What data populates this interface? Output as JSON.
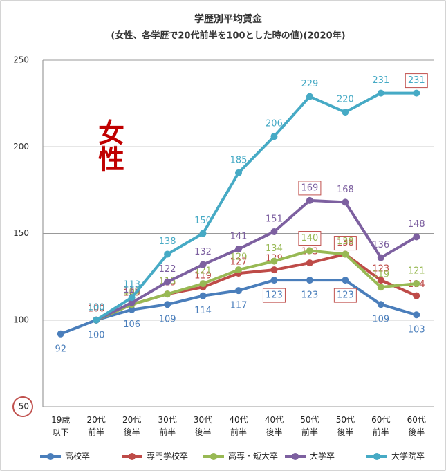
{
  "chart_data": {
    "type": "line",
    "title": "学歴別平均賃金",
    "subtitle": "(女性、各学歴で20代前半を100とした時の値)(2020年)",
    "annotation": "女性",
    "categories": [
      "19歳\n以下",
      "20代\n前半",
      "20代\n後半",
      "30代\n前半",
      "30代\n後半",
      "40代\n前半",
      "40代\n後半",
      "50代\n前半",
      "50代\n後半",
      "60代\n前半",
      "60代\n後半"
    ],
    "series": [
      {
        "name": "高校卒",
        "color": "#4a7ebb",
        "values": [
          92,
          100,
          106,
          109,
          114,
          117,
          123,
          123,
          123,
          109,
          103
        ]
      },
      {
        "name": "専門学校卒",
        "color": "#be4b48",
        "values": [
          null,
          100,
          109,
          115,
          119,
          127,
          129,
          133,
          138,
          123,
          114
        ]
      },
      {
        "name": "高専・短大卒",
        "color": "#98b954",
        "values": [
          null,
          100,
          109,
          115,
          121,
          129,
          134,
          140,
          138,
          119,
          121
        ]
      },
      {
        "name": "大学卒",
        "color": "#7d60a0",
        "values": [
          null,
          100,
          110,
          122,
          132,
          141,
          151,
          169,
          168,
          136,
          148
        ]
      },
      {
        "name": "大学院卒",
        "color": "#46aac5",
        "values": [
          null,
          100,
          113,
          138,
          150,
          185,
          206,
          229,
          220,
          231,
          231
        ]
      }
    ],
    "ylim": [
      50,
      250
    ],
    "yticks": [
      50,
      100,
      150,
      200,
      250
    ],
    "grid": true,
    "legend": "bottom"
  }
}
